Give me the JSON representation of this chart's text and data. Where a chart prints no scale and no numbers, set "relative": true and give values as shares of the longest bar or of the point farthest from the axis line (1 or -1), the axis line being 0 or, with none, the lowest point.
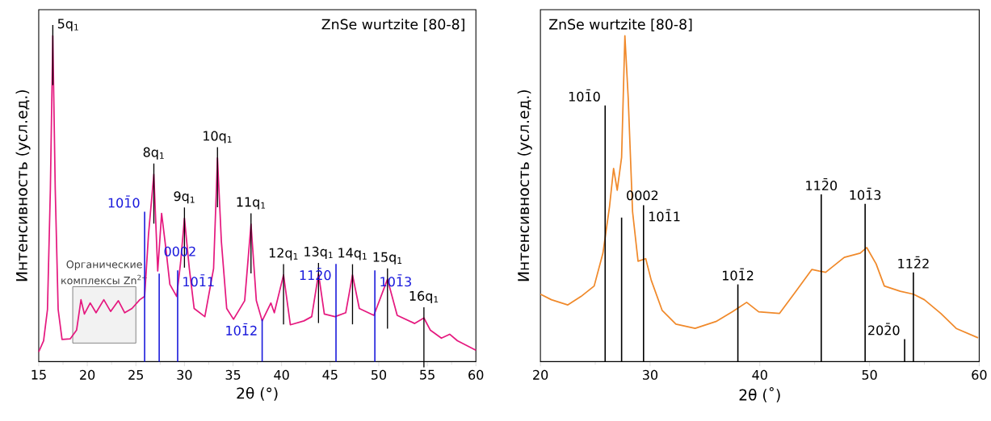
{
  "chart_data": [
    {
      "type": "line",
      "relative": true,
      "xlabel": "2θ (°)",
      "ylabel": "Интенсивность (усл.ед.)",
      "xlim": [
        15,
        60
      ],
      "xticks": [
        15,
        20,
        25,
        30,
        35,
        40,
        45,
        50,
        55,
        60
      ],
      "annotations": [
        "ZnSe wurtzite [80-8]",
        {
          "text": "5q$_{1}$",
          "x": 16.45,
          "y": 1.0
        },
        {
          "text": "8q$_{1}$",
          "x": 26.85,
          "y": 0.575
        },
        {
          "text": "9q$_{1}$",
          "x": 30.0,
          "y": 0.44
        },
        {
          "text": "10q$_{1}$",
          "x": 33.4,
          "y": 0.625
        },
        {
          "text": "11q$_{1}$",
          "x": 36.85,
          "y": 0.422
        },
        {
          "text": "12q$_{1}$",
          "x": 40.2,
          "y": 0.266
        },
        {
          "text": "13q$_{1}$",
          "x": 43.8,
          "y": 0.27
        },
        {
          "text": "14q$_{1}$",
          "x": 47.3,
          "y": 0.266
        },
        {
          "text": "15q$_{1}$",
          "x": 50.9,
          "y": 0.253
        },
        {
          "text": "16q$_{1}$",
          "x": 54.65,
          "y": 0.134
        },
        {
          "text": "101̄0",
          "x": 25.9,
          "y": 0.46
        },
        {
          "text": "0002",
          "x": 27.4,
          "y": 0.27
        },
        {
          "text": "101̄1",
          "x": 29.3,
          "y": 0.28
        },
        {
          "text": "101̄2",
          "x": 38.0,
          "y": 0.13
        },
        {
          "text": "112̄0",
          "x": 45.6,
          "y": 0.3
        },
        {
          "text": "101̄3",
          "x": 49.6,
          "y": 0.28
        }
      ],
      "bands": [
        {
          "axis": "x",
          "from": 18.5,
          "to": 25,
          "label": "Органические комплексы Zn$^{2+}$"
        }
      ],
      "series": [
        {
          "color": "#e5197f",
          "x": [
            15.0,
            15.5,
            15.9,
            16.2,
            16.45,
            16.7,
            17.0,
            17.4,
            18.25,
            18.9,
            19.35,
            19.7,
            20.3,
            20.9,
            21.7,
            22.4,
            23.2,
            23.85,
            24.6,
            25.4,
            25.9,
            26.3,
            26.85,
            27.25,
            27.65,
            28.1,
            28.5,
            29.2,
            29.6,
            30.0,
            30.5,
            31.0,
            32.1,
            33.0,
            33.4,
            33.8,
            34.35,
            35.05,
            36.2,
            36.85,
            37.4,
            38.0,
            38.9,
            39.25,
            40.2,
            40.9,
            42.3,
            43.1,
            43.8,
            44.4,
            45.5,
            46.6,
            47.3,
            48.0,
            49.5,
            50.9,
            51.9,
            53.7,
            54.65,
            55.3,
            56.45,
            57.3,
            58.1,
            60.0
          ],
          "values": [
            0.03,
            0.064,
            0.16,
            0.53,
            1.0,
            0.53,
            0.16,
            0.068,
            0.07,
            0.097,
            0.19,
            0.146,
            0.18,
            0.15,
            0.19,
            0.154,
            0.187,
            0.15,
            0.163,
            0.19,
            0.2,
            0.39,
            0.575,
            0.278,
            0.455,
            0.344,
            0.237,
            0.2,
            0.303,
            0.44,
            0.286,
            0.163,
            0.138,
            0.286,
            0.625,
            0.369,
            0.163,
            0.13,
            0.187,
            0.422,
            0.187,
            0.125,
            0.18,
            0.15,
            0.266,
            0.113,
            0.125,
            0.138,
            0.27,
            0.146,
            0.138,
            0.15,
            0.266,
            0.163,
            0.142,
            0.253,
            0.142,
            0.117,
            0.134,
            0.097,
            0.072,
            0.084,
            0.064,
            0.035
          ]
        },
        {
          "type": "bar",
          "color": "#1a1adc",
          "x": [
            25.9,
            27.4,
            29.3,
            38.0,
            45.6,
            49.6
          ],
          "values": [
            0.46,
            0.27,
            0.28,
            0.13,
            0.3,
            0.28
          ]
        }
      ]
    },
    {
      "type": "line",
      "relative": true,
      "xlabel": "2θ (˚)",
      "ylabel": "Интенсивность (усл.ед.)",
      "xlim": [
        20,
        60
      ],
      "xticks": [
        20,
        30,
        40,
        50,
        60
      ],
      "annotations": [
        "ZnSe wurtzite [80-8]",
        {
          "text": "101̄0",
          "x": 25.9,
          "y": 0.786
        },
        {
          "text": "0002",
          "x": 27.4,
          "y": 0.442
        },
        {
          "text": "101̄1",
          "x": 29.4,
          "y": 0.48
        },
        {
          "text": "101̄2",
          "x": 38.0,
          "y": 0.237
        },
        {
          "text": "112̄0",
          "x": 45.6,
          "y": 0.513
        },
        {
          "text": "101̄3",
          "x": 49.6,
          "y": 0.484
        },
        {
          "text": "202̄0",
          "x": 53.2,
          "y": 0.069
        },
        {
          "text": "112̄2",
          "x": 54.0,
          "y": 0.274
        }
      ],
      "series": [
        {
          "color": "#f0892a",
          "x": [
            20.0,
            21.0,
            22.5,
            23.7,
            24.9,
            25.7,
            26.3,
            26.67,
            27.0,
            27.4,
            27.7,
            28.0,
            28.4,
            28.9,
            29.6,
            30.1,
            31.1,
            32.35,
            34.1,
            36.0,
            37.5,
            38.8,
            39.9,
            41.8,
            43.3,
            44.75,
            46.0,
            47.7,
            49.15,
            49.75,
            50.6,
            51.35,
            52.8,
            54.0,
            55.0,
            56.5,
            57.9,
            59.9
          ],
          "values": [
            0.207,
            0.19,
            0.174,
            0.2,
            0.232,
            0.333,
            0.476,
            0.593,
            0.526,
            0.627,
            1.0,
            0.81,
            0.46,
            0.308,
            0.316,
            0.25,
            0.157,
            0.115,
            0.102,
            0.123,
            0.153,
            0.182,
            0.153,
            0.148,
            0.216,
            0.283,
            0.274,
            0.32,
            0.333,
            0.35,
            0.3,
            0.232,
            0.216,
            0.207,
            0.19,
            0.148,
            0.102,
            0.073
          ]
        },
        {
          "type": "bar",
          "color": "#000000",
          "x": [
            25.9,
            27.4,
            29.4,
            38.0,
            45.6,
            49.6,
            53.2,
            54.0
          ],
          "values": [
            0.786,
            0.442,
            0.48,
            0.237,
            0.513,
            0.484,
            0.069,
            0.274
          ]
        }
      ]
    }
  ]
}
